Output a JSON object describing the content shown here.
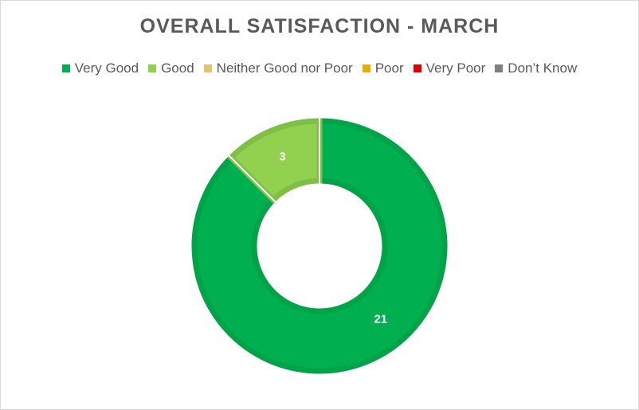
{
  "chart_data": {
    "type": "pie",
    "variant": "doughnut",
    "title": "OVERALL SATISFACTION - MARCH",
    "categories": [
      "Very Good",
      "Good",
      "Neither Good nor Poor",
      "Poor",
      "Very Poor",
      "Don’t Know"
    ],
    "values": [
      21,
      3,
      0,
      0,
      0,
      0
    ],
    "colors": [
      "#00b050",
      "#92d050",
      "#e6c36a",
      "#e6b000",
      "#e00000",
      "#7f7f7f"
    ],
    "border_colors": [
      "#00a347",
      "#7fbf45",
      "#d4b258",
      "#d4a200",
      "#cc0000",
      "#6f6f6f"
    ],
    "data_labels": [
      "21",
      "3",
      "",
      "",
      "",
      ""
    ],
    "legend_position": "top"
  }
}
